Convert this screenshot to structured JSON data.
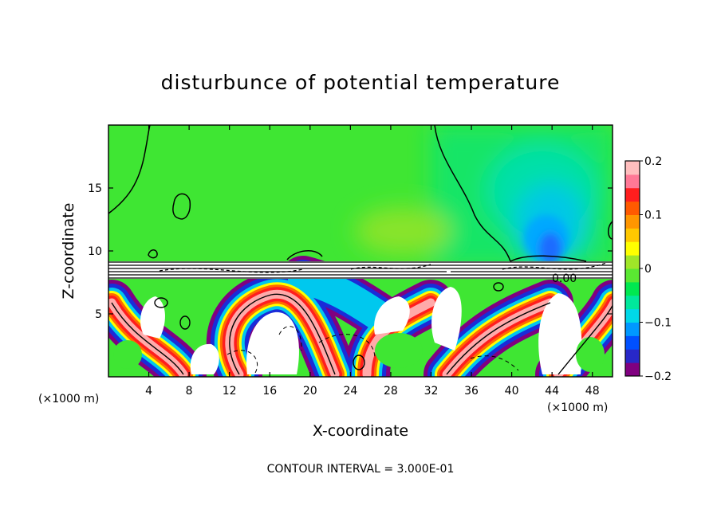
{
  "chart_data": {
    "type": "heatmap",
    "title": "disturbunce of potential temperature",
    "xlabel": "X-coordinate",
    "ylabel": "Z-coordinate",
    "x_unit": "(×1000 m)",
    "x_unit_right": "(×1000 m)",
    "x_ticks": [
      4,
      8,
      12,
      16,
      20,
      24,
      28,
      32,
      36,
      40,
      44,
      48
    ],
    "y_ticks": [
      5,
      10,
      15
    ],
    "xlim": [
      0,
      50
    ],
    "ylim": [
      0,
      20
    ],
    "colorbar": {
      "ticks": [
        "0.2",
        "0.1",
        "0",
        "−0.1",
        "−0.2"
      ],
      "tick_values": [
        0.2,
        0.1,
        0,
        -0.1,
        -0.2
      ],
      "range": [
        -0.2,
        0.2
      ],
      "colors": [
        "#800080",
        "#2828c8",
        "#0050ff",
        "#0098ff",
        "#00d8e8",
        "#00e89c",
        "#00e850",
        "#5ae832",
        "#a0e628",
        "#ffff00",
        "#ffc800",
        "#ff9600",
        "#ff5a00",
        "#ff1e1e",
        "#ff7896",
        "#ffbebe"
      ]
    },
    "regions": [
      {
        "name": "upper",
        "z_range": [
          9,
          20
        ],
        "dominant_value": 0.02
      },
      {
        "name": "cold-anomaly",
        "x_center": 43.5,
        "z_center": 12,
        "min_value": -0.1
      },
      {
        "name": "warm-anomaly",
        "x_center": 28,
        "z_center": 12.5,
        "max_value": 0.04
      }
    ],
    "contour_label": "0.00",
    "contour_interval": 0.3,
    "footnote": "CONTOUR INTERVAL = 3.000E-01"
  }
}
